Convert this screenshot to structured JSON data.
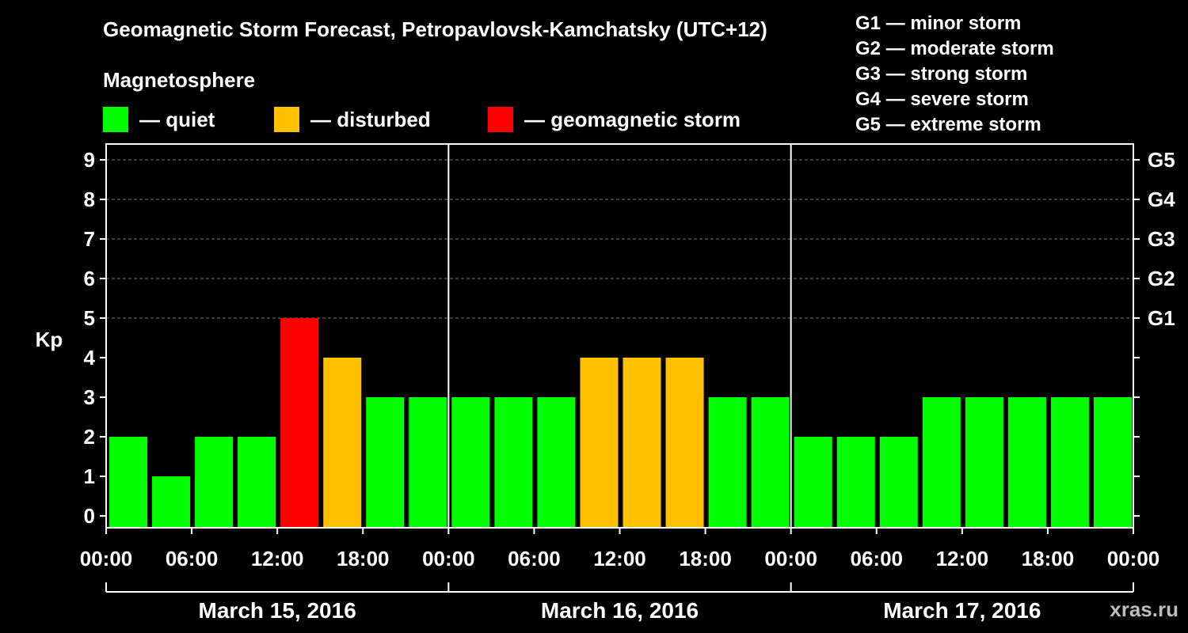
{
  "title": "Geomagnetic Storm Forecast, Petropavlovsk-Kamchatsky (UTC+12)",
  "magnetosphere_label": "Magnetosphere",
  "legend": [
    {
      "label": "— quiet",
      "color": "#00ff00"
    },
    {
      "label": "— disturbed",
      "color": "#ffc000"
    },
    {
      "label": "— geomagnetic storm",
      "color": "#ff0000"
    }
  ],
  "g_scale": [
    "G1 — minor storm",
    "G2 — moderate storm",
    "G3 — strong storm",
    "G4 — severe storm",
    "G5 — extreme storm"
  ],
  "watermark": "xras.ru",
  "chart_data": {
    "type": "bar",
    "ylabel": "Kp",
    "ylim": [
      0,
      9
    ],
    "yticks": [
      "0",
      "1",
      "2",
      "3",
      "4",
      "5",
      "6",
      "7",
      "8",
      "9"
    ],
    "right_axis": [
      {
        "kp": 5,
        "label": "G1"
      },
      {
        "kp": 6,
        "label": "G2"
      },
      {
        "kp": 7,
        "label": "G3"
      },
      {
        "kp": 8,
        "label": "G4"
      },
      {
        "kp": 9,
        "label": "G5"
      }
    ],
    "xtick_labels": [
      "00:00",
      "06:00",
      "12:00",
      "18:00",
      "00:00",
      "06:00",
      "12:00",
      "18:00",
      "00:00",
      "06:00",
      "12:00",
      "18:00",
      "00:00"
    ],
    "days": [
      "March 15, 2016",
      "March 16, 2016",
      "March 17, 2016"
    ],
    "values": [
      2,
      1,
      2,
      2,
      5,
      4,
      3,
      3,
      3,
      3,
      3,
      4,
      4,
      4,
      3,
      3,
      2,
      2,
      2,
      3,
      3,
      3,
      3,
      3
    ],
    "colors": {
      "quiet": "#00ff00",
      "disturbed": "#ffc000",
      "storm": "#ff0000"
    },
    "grid": true
  }
}
